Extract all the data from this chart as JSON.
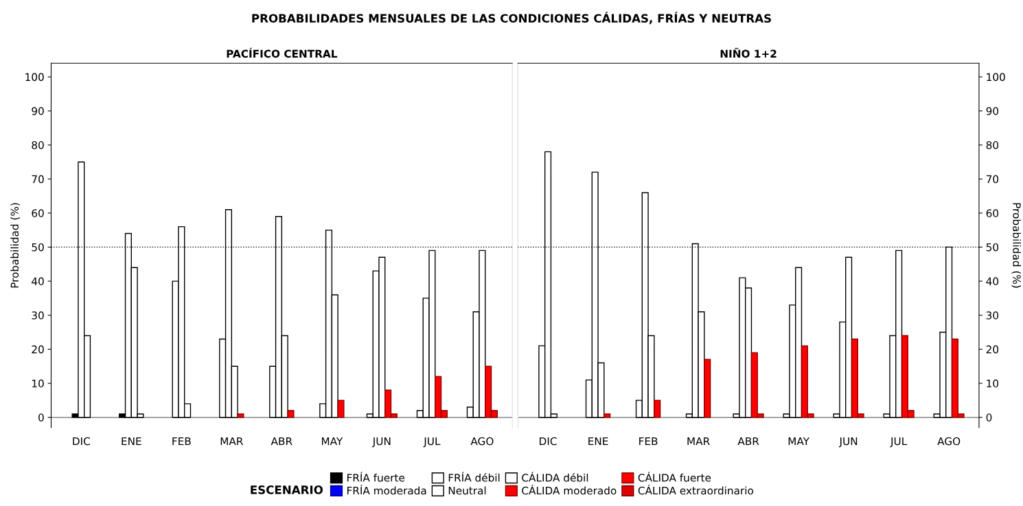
{
  "chart_data": [
    {
      "type": "bar",
      "title": "PROBABILIDADES MENSUALES DE LAS CONDICIONES CÁLIDAS, FRÍAS Y NEUTRAS",
      "subtitle": "PACÍFICO CENTRAL",
      "ylabel": "Probabilidad (%)",
      "legend_title": "ESCENARIO",
      "legend": "bottom",
      "categories": [
        "DIC",
        "ENE",
        "FEB",
        "MAR",
        "ABR",
        "MAY",
        "JUN",
        "JUL",
        "AGO"
      ],
      "ylim": [
        -3,
        104
      ],
      "yticks": [
        0,
        10,
        20,
        30,
        40,
        50,
        60,
        70,
        80,
        90,
        100
      ],
      "ref_lines": [
        {
          "axis": "y",
          "value": 50,
          "line_style": "dotted",
          "color": "#000000"
        }
      ],
      "series": [
        {
          "name": "FRÍA fuerte",
          "color": "#000000",
          "values": [
            1,
            1,
            null,
            null,
            null,
            null,
            null,
            null,
            null
          ]
        },
        {
          "name": "FRÍA moderada",
          "color": "#0000ff",
          "values": [
            null,
            null,
            null,
            null,
            null,
            null,
            null,
            null,
            null
          ]
        },
        {
          "name": "FRÍA débil",
          "color": "#ffffff",
          "values": [
            75,
            54,
            40,
            23,
            15,
            4,
            1,
            2,
            3
          ]
        },
        {
          "name": "Neutral",
          "color": "#ffffff",
          "values": [
            24,
            44,
            56,
            61,
            59,
            55,
            43,
            35,
            31
          ]
        },
        {
          "name": "CÁLIDA débil",
          "color": "#ffffff",
          "values": [
            null,
            1,
            4,
            15,
            24,
            36,
            47,
            49,
            49
          ]
        },
        {
          "name": "CÁLIDA moderado",
          "color": "#ff0000",
          "values": [
            null,
            null,
            null,
            1,
            2,
            5,
            8,
            12,
            15
          ]
        },
        {
          "name": "CÁLIDA fuerte",
          "color": "#ff0000",
          "values": [
            null,
            null,
            null,
            null,
            null,
            null,
            1,
            2,
            2
          ]
        },
        {
          "name": "CÁLIDA extraordinario",
          "color": "#dd0000",
          "values": [
            null,
            null,
            null,
            null,
            null,
            null,
            null,
            null,
            null
          ]
        }
      ]
    },
    {
      "type": "bar",
      "subtitle": "NIÑO 1+2",
      "ylabel": "Probabilidad (%)",
      "categories": [
        "DIC",
        "ENE",
        "FEB",
        "MAR",
        "ABR",
        "MAY",
        "JUN",
        "JUL",
        "AGO"
      ],
      "ylim": [
        -3,
        104
      ],
      "yticks": [
        0,
        10,
        20,
        30,
        40,
        50,
        60,
        70,
        80,
        90,
        100
      ],
      "ref_lines": [
        {
          "axis": "y",
          "value": 50,
          "line_style": "dotted",
          "color": "#000000"
        }
      ],
      "series": [
        {
          "color": "#ffffff",
          "values": [
            21,
            11,
            5,
            1,
            1,
            1,
            1,
            1,
            1
          ]
        },
        {
          "color": "#ffffff",
          "values": [
            78,
            72,
            66,
            51,
            41,
            33,
            28,
            24,
            25
          ]
        },
        {
          "color": "#ffffff",
          "values": [
            1,
            16,
            24,
            31,
            38,
            44,
            47,
            49,
            50
          ]
        },
        {
          "color": "#ff0000",
          "values": [
            null,
            1,
            5,
            17,
            19,
            21,
            23,
            24,
            23
          ]
        },
        {
          "color": "#ff0000",
          "values": [
            null,
            null,
            null,
            null,
            1,
            1,
            1,
            2,
            1
          ]
        }
      ]
    }
  ]
}
